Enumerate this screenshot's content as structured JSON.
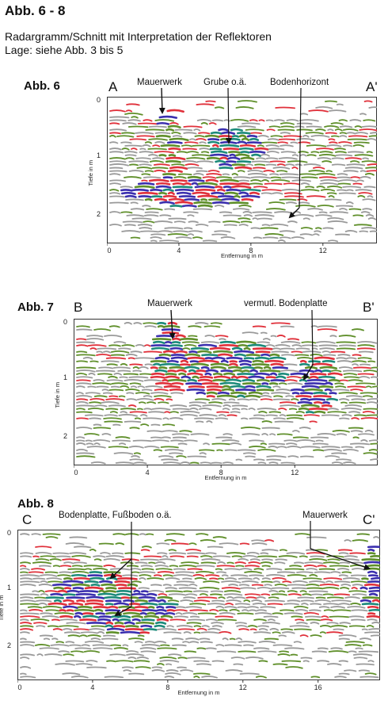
{
  "header": {
    "title": "Abb. 6 - 8",
    "subtitle_line1": "Radargramm/Schnitt mit Interpretation der Reflektoren",
    "subtitle_line2": "Lage: siehe Abb. 3 bis 5"
  },
  "figures": [
    {
      "id": "abb6",
      "label": "Abb. 6",
      "start": "A",
      "end": "A'",
      "x_label": "Entfernung in m",
      "y_label": "Tiefe in m",
      "x_ticks": [
        "0",
        "4",
        "8",
        "12"
      ],
      "y_ticks": [
        "0",
        "1",
        "2"
      ],
      "annotations": [
        "Mauerwerk",
        "Grube o.ä.",
        "Bodenhorizont"
      ]
    },
    {
      "id": "abb7",
      "label": "Abb. 7",
      "start": "B",
      "end": "B'",
      "x_label": "Entfernung in m",
      "y_label": "Tiefe in m",
      "x_ticks": [
        "0",
        "4",
        "8",
        "12"
      ],
      "y_ticks": [
        "0",
        "1",
        "2"
      ],
      "annotations": [
        "Mauerwerk",
        "vermutl. Bodenplatte"
      ]
    },
    {
      "id": "abb8",
      "label": "Abb. 8",
      "start": "C",
      "end": "C'",
      "x_label": "Entfernung in m",
      "y_label": "Tiefe in m",
      "x_ticks": [
        "0",
        "4",
        "8",
        "12",
        "16"
      ],
      "y_ticks": [
        "0",
        "1",
        "2"
      ],
      "annotations": [
        "Bodenplatte, Fußboden o.ä.",
        "Mauerwerk"
      ]
    }
  ],
  "colors": {
    "reflector_red": "#e0303a",
    "reflector_green": "#5f8f2a",
    "reflector_blue": "#3b2fae",
    "reflector_teal": "#1b8a7a",
    "noise_gray": "#9a9a9a"
  }
}
